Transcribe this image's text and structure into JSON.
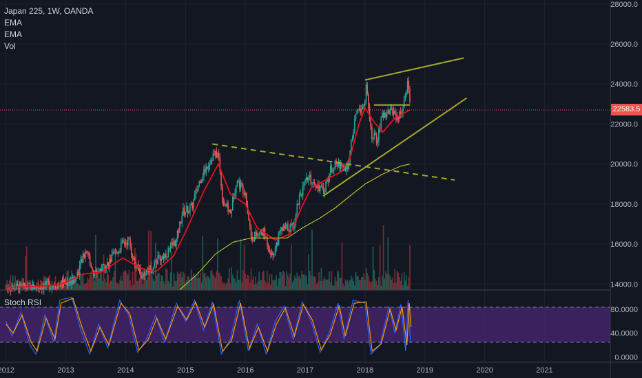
{
  "legend": {
    "symbol": "Japan 225, 1W, OANDA",
    "ema1": "EMA",
    "ema2": "EMA",
    "vol": "Vol"
  },
  "stoch_label": "Stoch RSI",
  "last_price": "22583.5",
  "colors": {
    "background": "#131722",
    "grid": "#1f2330",
    "candle_up": "#26a69a",
    "candle_down": "#ef5350",
    "ema_fast": "#e8101c",
    "ema_slow": "#d4d72a",
    "trendline": "#a6a82a",
    "stoch_band": "#4a2673",
    "stoch_k": "#2962ff",
    "stoch_d": "#ff9800"
  },
  "chart_data": [
    {
      "type": "candlestick",
      "title": "Japan 225, 1W, OANDA",
      "y_axis": {
        "ticks": [
          "28000.0",
          "26000.0",
          "24000.0",
          "22000.0",
          "20000.0",
          "18000.0",
          "16000.0",
          "14000.0"
        ],
        "ylim": [
          13700,
          28200
        ]
      },
      "x_axis": {
        "ticks": [
          "2012",
          "2013",
          "2014",
          "2015",
          "2016",
          "2017",
          "2018",
          "2019",
          "2020",
          "2021"
        ],
        "xlim": [
          2011.9,
          2022.1
        ]
      },
      "last_price": 22583.5,
      "close_series": [
        [
          2012.0,
          13800
        ],
        [
          2012.5,
          13850
        ],
        [
          2012.9,
          14000
        ],
        [
          2013.15,
          14200
        ],
        [
          2013.35,
          15800
        ],
        [
          2013.45,
          14500
        ],
        [
          2013.7,
          15000
        ],
        [
          2013.95,
          16000
        ],
        [
          2014.05,
          16200
        ],
        [
          2014.15,
          15000
        ],
        [
          2014.3,
          14300
        ],
        [
          2014.5,
          15100
        ],
        [
          2014.7,
          15600
        ],
        [
          2014.85,
          16200
        ],
        [
          2014.95,
          17600
        ],
        [
          2015.1,
          17800
        ],
        [
          2015.25,
          19300
        ],
        [
          2015.45,
          20400
        ],
        [
          2015.55,
          20500
        ],
        [
          2015.62,
          18200
        ],
        [
          2015.75,
          17500
        ],
        [
          2015.85,
          19200
        ],
        [
          2016.0,
          18600
        ],
        [
          2016.1,
          16300
        ],
        [
          2016.3,
          16600
        ],
        [
          2016.45,
          15400
        ],
        [
          2016.6,
          16700
        ],
        [
          2016.8,
          16900
        ],
        [
          2016.9,
          18400
        ],
        [
          2017.05,
          19300
        ],
        [
          2017.2,
          19000
        ],
        [
          2017.3,
          18600
        ],
        [
          2017.45,
          19900
        ],
        [
          2017.6,
          20000
        ],
        [
          2017.68,
          19500
        ],
        [
          2017.75,
          20600
        ],
        [
          2017.85,
          22500
        ],
        [
          2017.98,
          22900
        ],
        [
          2018.02,
          23900
        ],
        [
          2018.1,
          21500
        ],
        [
          2018.2,
          21200
        ],
        [
          2018.3,
          22500
        ],
        [
          2018.45,
          22700
        ],
        [
          2018.55,
          22300
        ],
        [
          2018.65,
          22900
        ],
        [
          2018.72,
          24300
        ],
        [
          2018.76,
          22600
        ]
      ],
      "ema_fast": [
        [
          2012.0,
          13800
        ],
        [
          2012.9,
          13950
        ],
        [
          2013.3,
          14500
        ],
        [
          2013.6,
          14600
        ],
        [
          2013.95,
          15300
        ],
        [
          2014.25,
          14800
        ],
        [
          2014.5,
          14600
        ],
        [
          2014.8,
          15400
        ],
        [
          2015.0,
          16600
        ],
        [
          2015.3,
          18600
        ],
        [
          2015.55,
          20000
        ],
        [
          2015.75,
          18500
        ],
        [
          2016.0,
          18000
        ],
        [
          2016.2,
          16800
        ],
        [
          2016.5,
          16200
        ],
        [
          2016.75,
          16500
        ],
        [
          2016.95,
          17900
        ],
        [
          2017.1,
          18800
        ],
        [
          2017.4,
          19300
        ],
        [
          2017.6,
          19600
        ],
        [
          2017.75,
          20300
        ],
        [
          2017.9,
          22000
        ],
        [
          2018.0,
          22800
        ],
        [
          2018.15,
          22100
        ],
        [
          2018.3,
          21600
        ],
        [
          2018.5,
          22300
        ],
        [
          2018.75,
          22700
        ]
      ],
      "ema_slow": [
        [
          2014.9,
          13700
        ],
        [
          2015.2,
          14500
        ],
        [
          2015.5,
          15500
        ],
        [
          2015.8,
          16100
        ],
        [
          2016.1,
          16300
        ],
        [
          2016.4,
          16300
        ],
        [
          2016.7,
          16300
        ],
        [
          2016.95,
          16800
        ],
        [
          2017.25,
          17300
        ],
        [
          2017.5,
          17800
        ],
        [
          2017.75,
          18400
        ],
        [
          2018.0,
          19000
        ],
        [
          2018.3,
          19500
        ],
        [
          2018.6,
          19900
        ],
        [
          2018.75,
          20000
        ]
      ],
      "trendlines": [
        {
          "from": [
            2015.45,
            21000
          ],
          "to": [
            2019.5,
            19200
          ],
          "dashed": true
        },
        {
          "from": [
            2018.0,
            24200
          ],
          "to": [
            2019.65,
            25300
          ],
          "dashed": false
        },
        {
          "from": [
            2017.3,
            18400
          ],
          "to": [
            2019.7,
            23300
          ],
          "dashed": false
        },
        {
          "from": [
            2018.15,
            22950
          ],
          "to": [
            2018.75,
            22950
          ],
          "dashed": false
        }
      ]
    },
    {
      "type": "line",
      "title": "Stoch RSI",
      "y_axis": {
        "ticks": [
          "80.0000",
          "40.0000",
          "0.0000"
        ],
        "ylim": [
          -5,
          105
        ]
      },
      "band": [
        20,
        80
      ],
      "series": [
        {
          "values": [
            [
              2012.0,
              60
            ],
            [
              2012.1,
              35
            ],
            [
              2012.25,
              75
            ],
            [
              2012.4,
              20
            ],
            [
              2012.5,
              5
            ],
            [
              2012.65,
              70
            ],
            [
              2012.8,
              25
            ],
            [
              2012.9,
              95
            ],
            [
              2013.1,
              100
            ],
            [
              2013.25,
              45
            ],
            [
              2013.4,
              5
            ],
            [
              2013.55,
              55
            ],
            [
              2013.7,
              15
            ],
            [
              2013.9,
              95
            ],
            [
              2014.05,
              70
            ],
            [
              2014.2,
              8
            ],
            [
              2014.35,
              30
            ],
            [
              2014.5,
              70
            ],
            [
              2014.65,
              25
            ],
            [
              2014.85,
              90
            ],
            [
              2015.0,
              60
            ],
            [
              2015.15,
              95
            ],
            [
              2015.3,
              45
            ],
            [
              2015.45,
              92
            ],
            [
              2015.6,
              5
            ],
            [
              2015.75,
              30
            ],
            [
              2015.9,
              95
            ],
            [
              2016.05,
              10
            ],
            [
              2016.2,
              55
            ],
            [
              2016.35,
              5
            ],
            [
              2016.5,
              60
            ],
            [
              2016.65,
              85
            ],
            [
              2016.8,
              30
            ],
            [
              2016.95,
              92
            ],
            [
              2017.1,
              60
            ],
            [
              2017.25,
              8
            ],
            [
              2017.4,
              40
            ],
            [
              2017.55,
              90
            ],
            [
              2017.65,
              30
            ],
            [
              2017.8,
              95
            ],
            [
              2018.0,
              90
            ],
            [
              2018.1,
              5
            ],
            [
              2018.25,
              20
            ],
            [
              2018.4,
              85
            ],
            [
              2018.5,
              40
            ],
            [
              2018.6,
              88
            ],
            [
              2018.68,
              10
            ],
            [
              2018.72,
              95
            ],
            [
              2018.76,
              25
            ]
          ]
        },
        {
          "values": [
            [
              2012.0,
              55
            ],
            [
              2012.12,
              40
            ],
            [
              2012.27,
              70
            ],
            [
              2012.42,
              25
            ],
            [
              2012.52,
              10
            ],
            [
              2012.67,
              65
            ],
            [
              2012.82,
              30
            ],
            [
              2012.92,
              90
            ],
            [
              2013.12,
              98
            ],
            [
              2013.27,
              50
            ],
            [
              2013.42,
              10
            ],
            [
              2013.57,
              50
            ],
            [
              2013.72,
              20
            ],
            [
              2013.92,
              90
            ],
            [
              2014.07,
              72
            ],
            [
              2014.22,
              12
            ],
            [
              2014.37,
              28
            ],
            [
              2014.52,
              65
            ],
            [
              2014.67,
              30
            ],
            [
              2014.87,
              85
            ],
            [
              2015.02,
              62
            ],
            [
              2015.17,
              92
            ],
            [
              2015.32,
              50
            ],
            [
              2015.47,
              88
            ],
            [
              2015.62,
              10
            ],
            [
              2015.77,
              28
            ],
            [
              2015.92,
              90
            ],
            [
              2016.07,
              14
            ],
            [
              2016.22,
              50
            ],
            [
              2016.37,
              10
            ],
            [
              2016.52,
              55
            ],
            [
              2016.67,
              82
            ],
            [
              2016.82,
              35
            ],
            [
              2016.97,
              88
            ],
            [
              2017.12,
              62
            ],
            [
              2017.27,
              12
            ],
            [
              2017.42,
              38
            ],
            [
              2017.57,
              86
            ],
            [
              2017.67,
              35
            ],
            [
              2017.82,
              90
            ],
            [
              2018.02,
              92
            ],
            [
              2018.12,
              10
            ],
            [
              2018.27,
              22
            ],
            [
              2018.42,
              80
            ],
            [
              2018.52,
              45
            ],
            [
              2018.62,
              84
            ],
            [
              2018.7,
              20
            ],
            [
              2018.74,
              90
            ],
            [
              2018.77,
              50
            ]
          ]
        }
      ]
    }
  ]
}
